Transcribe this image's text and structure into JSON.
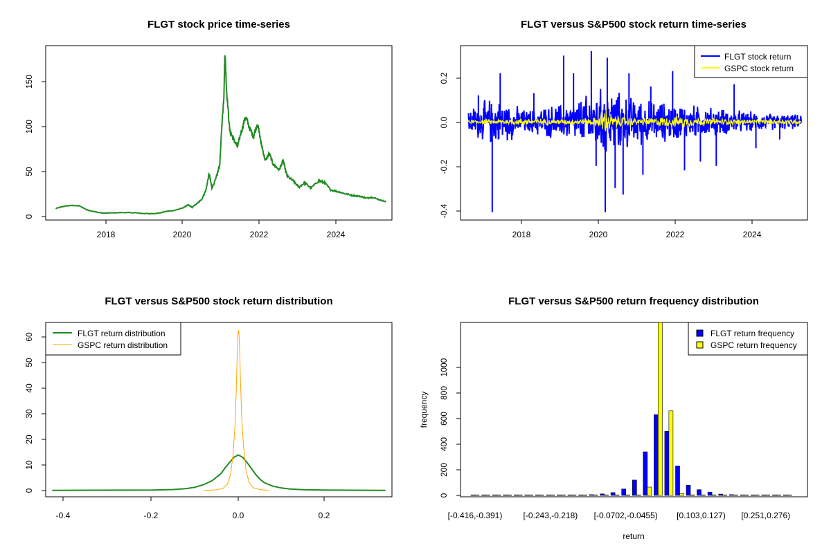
{
  "chart_data": [
    {
      "type": "line",
      "title": "FLGT stock price time-series",
      "xlabel": "",
      "ylabel": "",
      "xlim": [
        2016.55,
        2025.3
      ],
      "ylim": [
        -3,
        188
      ],
      "x_ticks": [
        "2018",
        "2020",
        "2022",
        "2024"
      ],
      "y_ticks": [
        "0",
        "50",
        "100",
        "150"
      ],
      "series": [
        {
          "color": "#228B22",
          "points": [
            [
              2016.8,
              9.5
            ],
            [
              2017.0,
              12.0
            ],
            [
              2017.2,
              13.0
            ],
            [
              2017.4,
              12.5
            ],
            [
              2017.6,
              8.0
            ],
            [
              2017.8,
              6.0
            ],
            [
              2018.0,
              4.5
            ],
            [
              2018.2,
              4.8
            ],
            [
              2018.5,
              5.2
            ],
            [
              2018.8,
              5.0
            ],
            [
              2019.0,
              4.2
            ],
            [
              2019.2,
              4.0
            ],
            [
              2019.4,
              4.5
            ],
            [
              2019.6,
              6.5
            ],
            [
              2019.8,
              7.5
            ],
            [
              2020.0,
              10.0
            ],
            [
              2020.15,
              13.5
            ],
            [
              2020.25,
              11.0
            ],
            [
              2020.4,
              16.0
            ],
            [
              2020.5,
              20.0
            ],
            [
              2020.6,
              30.0
            ],
            [
              2020.68,
              48.0
            ],
            [
              2020.75,
              32.0
            ],
            [
              2020.85,
              42.0
            ],
            [
              2020.95,
              58.0
            ],
            [
              2021.0,
              100.0
            ],
            [
              2021.05,
              130.0
            ],
            [
              2021.08,
              182.0
            ],
            [
              2021.12,
              140.0
            ],
            [
              2021.2,
              95.0
            ],
            [
              2021.3,
              85.0
            ],
            [
              2021.4,
              78.0
            ],
            [
              2021.5,
              95.0
            ],
            [
              2021.6,
              110.0
            ],
            [
              2021.7,
              98.0
            ],
            [
              2021.8,
              88.0
            ],
            [
              2021.9,
              103.0
            ],
            [
              2022.0,
              80.0
            ],
            [
              2022.1,
              62.0
            ],
            [
              2022.2,
              70.0
            ],
            [
              2022.3,
              58.0
            ],
            [
              2022.45,
              52.0
            ],
            [
              2022.55,
              62.0
            ],
            [
              2022.65,
              45.0
            ],
            [
              2022.8,
              40.0
            ],
            [
              2022.95,
              33.0
            ],
            [
              2023.1,
              38.0
            ],
            [
              2023.25,
              32.0
            ],
            [
              2023.45,
              40.0
            ],
            [
              2023.6,
              38.0
            ],
            [
              2023.75,
              30.0
            ],
            [
              2023.95,
              28.0
            ],
            [
              2024.1,
              26.0
            ],
            [
              2024.3,
              24.0
            ],
            [
              2024.5,
              23.0
            ],
            [
              2024.65,
              21.0
            ],
            [
              2024.8,
              22.0
            ],
            [
              2025.0,
              19.0
            ],
            [
              2025.15,
              17.0
            ]
          ]
        }
      ]
    },
    {
      "type": "line",
      "title": "FLGT versus S&P500 stock return time-series",
      "xlabel": "",
      "ylabel": "",
      "xlim": [
        2016.55,
        2025.3
      ],
      "ylim": [
        -0.445,
        0.345
      ],
      "x_ticks": [
        "2018",
        "2020",
        "2022",
        "2024"
      ],
      "y_ticks": [
        "-0.4",
        "-0.2",
        "0.0",
        "0.2"
      ],
      "legend": {
        "position": "top-right",
        "entries": [
          "FLGT stock return",
          "GSPC stock return"
        ]
      },
      "series": [
        {
          "name": "FLGT stock return",
          "color": "#0000FF",
          "x_start": 2016.75,
          "x_end": 2025.15,
          "envelope": [
            [
              2016.8,
              0.06
            ],
            [
              2017.3,
              0.1
            ],
            [
              2017.8,
              0.08
            ],
            [
              2018.2,
              0.05
            ],
            [
              2018.8,
              0.07
            ],
            [
              2019.3,
              0.08
            ],
            [
              2019.8,
              0.12
            ],
            [
              2020.2,
              0.15
            ],
            [
              2020.6,
              0.12
            ],
            [
              2021.0,
              0.1
            ],
            [
              2021.5,
              0.09
            ],
            [
              2022.0,
              0.08
            ],
            [
              2022.5,
              0.07
            ],
            [
              2023.0,
              0.06
            ],
            [
              2023.5,
              0.05
            ],
            [
              2024.0,
              0.04
            ],
            [
              2024.5,
              0.035
            ],
            [
              2025.1,
              0.03
            ]
          ],
          "spikes": [
            [
              2017.0,
              0.12
            ],
            [
              2017.35,
              -0.41
            ],
            [
              2017.55,
              0.22
            ],
            [
              2018.4,
              0.13
            ],
            [
              2019.15,
              0.3
            ],
            [
              2019.4,
              0.22
            ],
            [
              2019.85,
              0.32
            ],
            [
              2019.97,
              -0.2
            ],
            [
              2020.2,
              -0.41
            ],
            [
              2020.25,
              0.29
            ],
            [
              2020.45,
              -0.3
            ],
            [
              2020.65,
              -0.33
            ],
            [
              2020.8,
              0.22
            ],
            [
              2021.15,
              -0.24
            ],
            [
              2021.35,
              0.16
            ],
            [
              2021.9,
              0.23
            ],
            [
              2022.2,
              -0.22
            ],
            [
              2022.6,
              -0.18
            ],
            [
              2023.0,
              -0.2
            ],
            [
              2023.45,
              0.17
            ],
            [
              2024.0,
              -0.12
            ],
            [
              2024.6,
              -0.08
            ]
          ]
        },
        {
          "name": "GSPC stock return",
          "color": "#FFFF00",
          "x_start": 2016.75,
          "x_end": 2025.15,
          "envelope": [
            [
              2016.8,
              0.008
            ],
            [
              2018.0,
              0.015
            ],
            [
              2019.5,
              0.012
            ],
            [
              2020.0,
              0.02
            ],
            [
              2020.2,
              0.07
            ],
            [
              2020.4,
              0.03
            ],
            [
              2021.0,
              0.015
            ],
            [
              2022.0,
              0.025
            ],
            [
              2023.0,
              0.015
            ],
            [
              2024.0,
              0.01
            ],
            [
              2025.1,
              0.012
            ]
          ],
          "spikes": []
        }
      ]
    },
    {
      "type": "line",
      "title": "FLGT versus S&P500 stock return distribution",
      "xlabel": "",
      "ylabel": "",
      "xlim": [
        -0.445,
        0.355
      ],
      "ylim": [
        -2.5,
        65
      ],
      "x_ticks": [
        "-0.4",
        "-0.2",
        "0.0",
        "0.2"
      ],
      "y_ticks": [
        "0",
        "10",
        "20",
        "30",
        "40",
        "50",
        "60"
      ],
      "legend": {
        "position": "top-left",
        "entries": [
          "FLGT return distribution",
          "GSPC return distribution"
        ]
      },
      "series": [
        {
          "name": "FLGT return distribution",
          "color": "#228B22",
          "points": [
            [
              -0.43,
              0.0
            ],
            [
              -0.2,
              0.1
            ],
            [
              -0.15,
              0.3
            ],
            [
              -0.12,
              0.7
            ],
            [
              -0.1,
              1.2
            ],
            [
              -0.08,
              2.2
            ],
            [
              -0.06,
              3.8
            ],
            [
              -0.04,
              6.5
            ],
            [
              -0.03,
              8.8
            ],
            [
              -0.02,
              10.8
            ],
            [
              -0.01,
              12.8
            ],
            [
              0.0,
              13.7
            ],
            [
              0.01,
              12.8
            ],
            [
              0.02,
              10.8
            ],
            [
              0.03,
              8.5
            ],
            [
              0.04,
              6.2
            ],
            [
              0.05,
              4.3
            ],
            [
              0.06,
              3.0
            ],
            [
              0.08,
              1.6
            ],
            [
              0.1,
              0.9
            ],
            [
              0.12,
              0.5
            ],
            [
              0.15,
              0.25
            ],
            [
              0.2,
              0.1
            ],
            [
              0.34,
              0.0
            ]
          ]
        },
        {
          "name": "GSPC return distribution",
          "color": "#FFA500",
          "points": [
            [
              -0.08,
              0.0
            ],
            [
              -0.05,
              0.2
            ],
            [
              -0.035,
              0.8
            ],
            [
              -0.025,
              2.5
            ],
            [
              -0.018,
              6.0
            ],
            [
              -0.012,
              14.0
            ],
            [
              -0.008,
              24.0
            ],
            [
              -0.005,
              37.0
            ],
            [
              -0.003,
              50.0
            ],
            [
              -0.001,
              60.0
            ],
            [
              0.001,
              62.0
            ],
            [
              0.003,
              55.0
            ],
            [
              0.005,
              42.0
            ],
            [
              0.008,
              28.0
            ],
            [
              0.012,
              17.0
            ],
            [
              0.018,
              7.5
            ],
            [
              0.025,
              3.0
            ],
            [
              0.035,
              1.0
            ],
            [
              0.05,
              0.3
            ],
            [
              0.07,
              0.0
            ]
          ]
        }
      ]
    },
    {
      "type": "bar",
      "title": "FLGT versus S&P500 return frequency distribution",
      "xlabel": "return",
      "ylabel": "frequency",
      "ylim": [
        0,
        1350
      ],
      "y_ticks": [
        "0",
        "200",
        "400",
        "600",
        "800",
        "1000"
      ],
      "x_tick_labels": [
        "[-0.416,-0.391)",
        "[-0.243,-0.218)",
        "[-0.0702,-0.0455)",
        "[0.103,0.127)",
        "[0.251,0.276)"
      ],
      "x_tick_positions": [
        0,
        7,
        14,
        21,
        27
      ],
      "legend": {
        "position": "top-right",
        "entries": [
          "FLGT return frequency",
          "GSPC return frequency"
        ]
      },
      "series": [
        {
          "name": "FLGT return frequency",
          "color": "#0000FF",
          "values": [
            2,
            1,
            1,
            1,
            1,
            1,
            2,
            3,
            3,
            3,
            4,
            6,
            12,
            22,
            50,
            120,
            340,
            630,
            500,
            230,
            80,
            45,
            25,
            10,
            6,
            4,
            3,
            3,
            2,
            1
          ]
        },
        {
          "name": "GSPC return frequency",
          "color": "#FFFF00",
          "values": [
            0,
            0,
            0,
            0,
            0,
            0,
            0,
            0,
            0,
            0,
            0,
            0,
            0,
            0,
            0,
            2,
            65,
            1350,
            660,
            15,
            1,
            0,
            0,
            0,
            0,
            0,
            0,
            0,
            0,
            0
          ]
        }
      ]
    }
  ]
}
